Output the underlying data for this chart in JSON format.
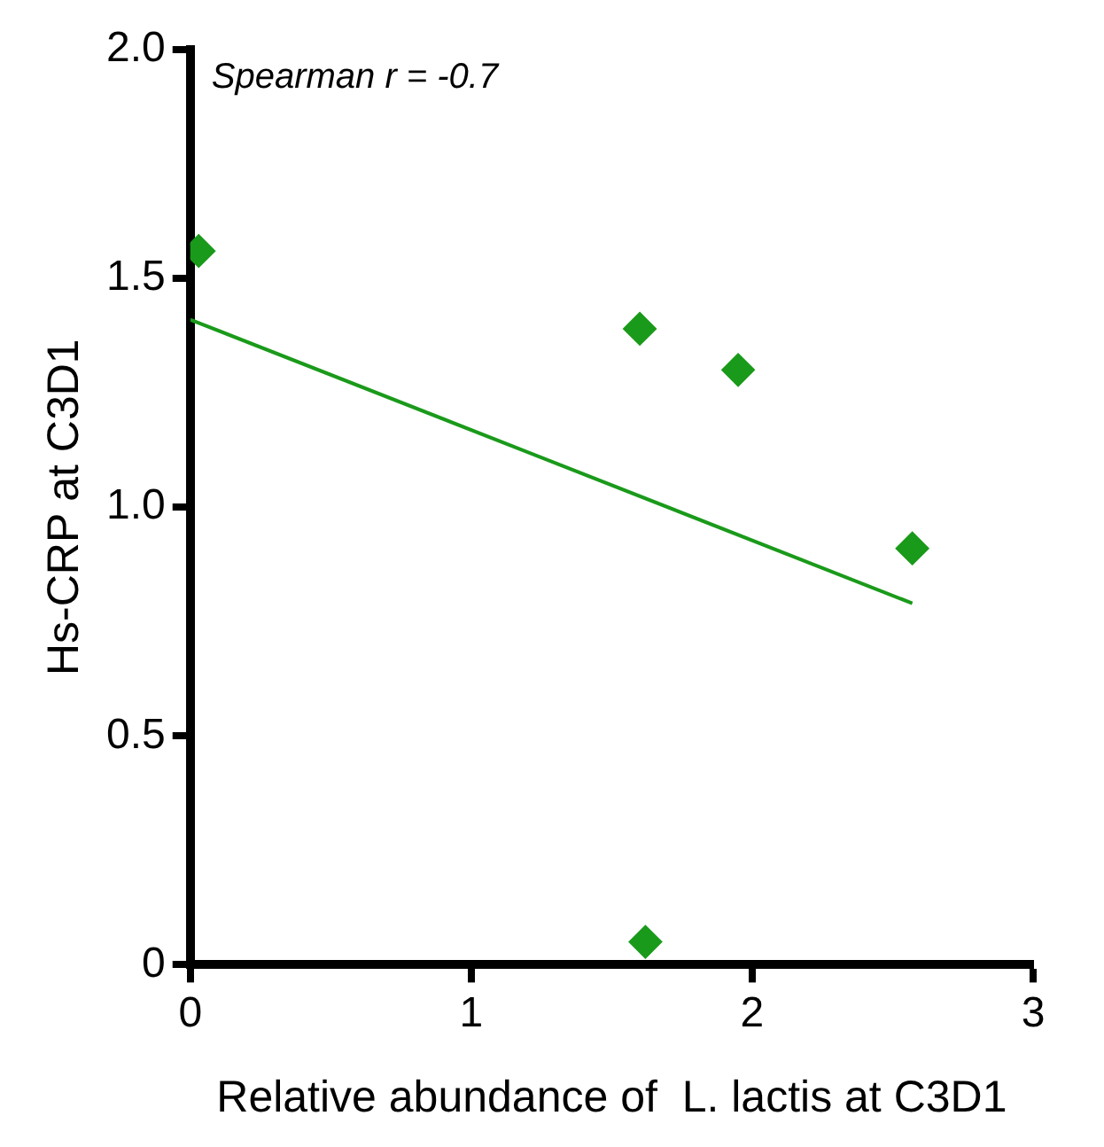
{
  "chart_data": {
    "type": "scatter",
    "xlabel": "Relative abundance of  L. lactis at C3D1",
    "ylabel": "Hs-CRP at C3D1",
    "annotations": [
      "Spearman r = -0.7"
    ],
    "marker": "diamond",
    "grid": false,
    "xlim": [
      0,
      3
    ],
    "xticks": [
      0,
      1,
      2,
      3
    ],
    "ylim": [
      0,
      2
    ],
    "yticks": [
      {
        "value": 0,
        "label": "0"
      },
      {
        "value": 0.5,
        "label": "0.5"
      },
      {
        "value": 1,
        "label": "1.0"
      },
      {
        "value": 1.5,
        "label": "1.5"
      },
      {
        "value": 2,
        "label": "2.0"
      }
    ],
    "series": [
      {
        "color": "#1a9a1a",
        "x": [
          0.03,
          1.6,
          1.95,
          2.57,
          1.62
        ],
        "values": [
          1.56,
          1.39,
          1.3,
          0.91,
          0.05
        ]
      },
      {
        "type": "line",
        "marker": "none",
        "color": "#1a9a1a",
        "x": [
          0,
          2.57
        ],
        "values": [
          1.41,
          0.79
        ]
      }
    ]
  }
}
